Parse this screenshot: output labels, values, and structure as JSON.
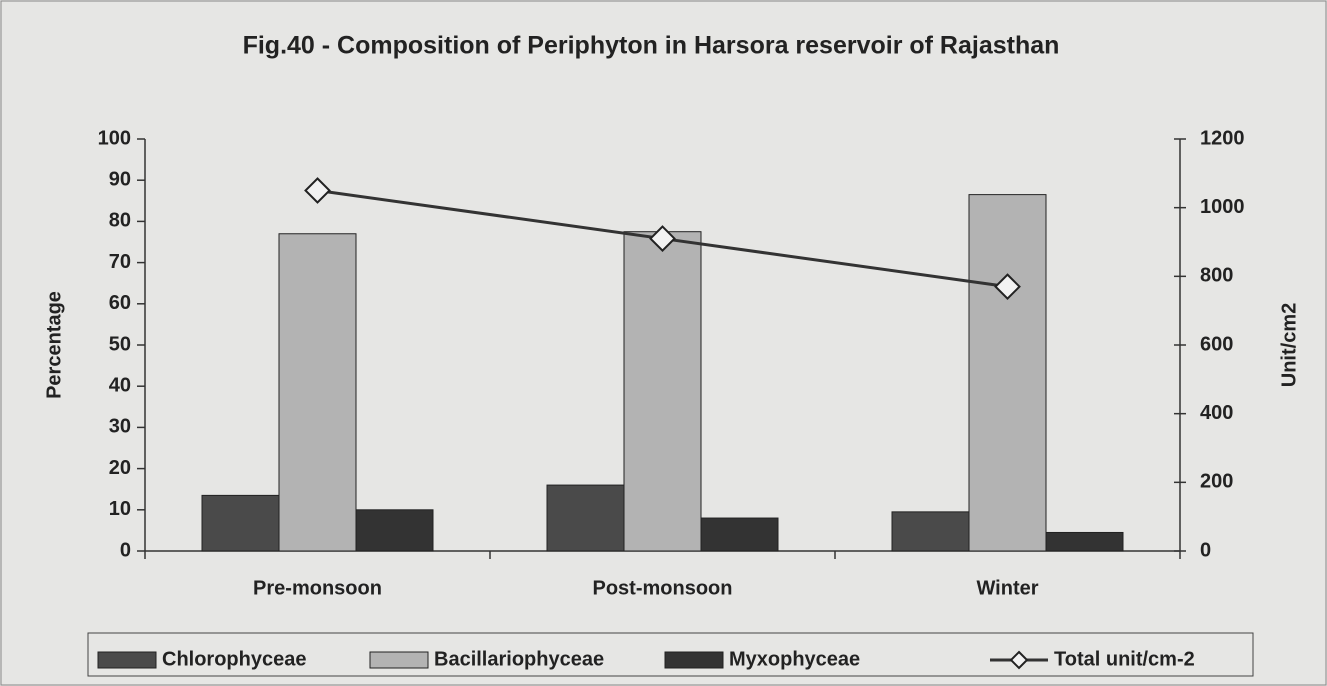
{
  "chart_data": {
    "type": "bar",
    "title": "Fig.40 - Composition of Periphyton in Harsora reservoir of Rajasthan",
    "categories": [
      "Pre-monsoon",
      "Post-monsoon",
      "Winter"
    ],
    "ylabel": "Percentage",
    "y2label": "Unit/cm2",
    "ylim": [
      0,
      100
    ],
    "yticks": [
      0,
      10,
      20,
      30,
      40,
      50,
      60,
      70,
      80,
      90,
      100
    ],
    "y2lim": [
      0,
      1200
    ],
    "y2ticks": [
      0,
      200,
      400,
      600,
      800,
      1000,
      1200
    ],
    "grid": false,
    "legend": "bottom",
    "series": [
      {
        "name": "Chlorophyceae",
        "type": "bar",
        "color": "#4a4a4a",
        "values": [
          13.5,
          16,
          9.5
        ]
      },
      {
        "name": "Bacillariophyceae",
        "type": "bar",
        "color": "#b3b3b3",
        "values": [
          77,
          77.5,
          86.5
        ]
      },
      {
        "name": "Myxophyceae",
        "type": "bar",
        "color": "#333333",
        "values": [
          10,
          8,
          4.5
        ]
      },
      {
        "name": "Total unit/cm-2",
        "type": "line",
        "axis": "y2",
        "color": "#333333",
        "values": [
          1050,
          910,
          770
        ]
      }
    ]
  }
}
